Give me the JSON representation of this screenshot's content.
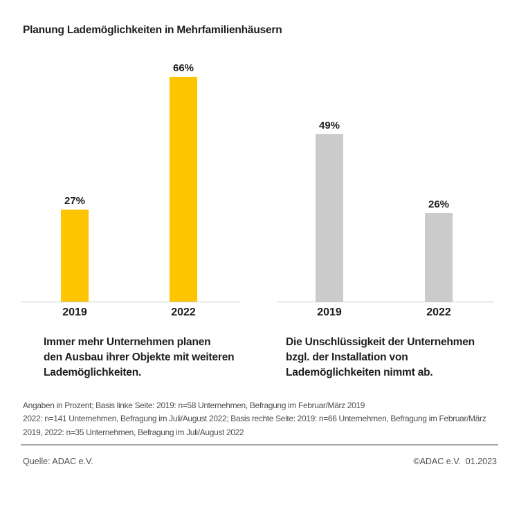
{
  "page": {
    "title": "Planung Lademöglichkeiten in Mehrfamilienhäusern"
  },
  "colors": {
    "bar_yellow": "#FDC600",
    "bar_gray": "#CBCBCB",
    "text_dark": "#1D1D1B",
    "text_muted": "#4E4E4E",
    "axis_line": "#C9C9C9",
    "divider": "#A6A6A6"
  },
  "chart_data": [
    {
      "type": "bar",
      "position": "left",
      "categories": [
        "2019",
        "2022"
      ],
      "values": [
        27,
        66
      ],
      "labels": [
        "27%",
        "66%"
      ],
      "value_suffix": "%",
      "bar_color": "#FDC600",
      "ylim": [
        0,
        70
      ],
      "grid": false,
      "legend": false,
      "caption_lines": [
        "Immer mehr Unternehmen planen",
        "den Ausbau ihrer Objekte mit weiteren",
        "Lademöglichkeiten."
      ]
    },
    {
      "type": "bar",
      "position": "right",
      "categories": [
        "2019",
        "2022"
      ],
      "values": [
        49,
        26
      ],
      "labels": [
        "49%",
        "26%"
      ],
      "value_suffix": "%",
      "bar_color": "#CBCBCB",
      "ylim": [
        0,
        70
      ],
      "grid": false,
      "legend": false,
      "caption_lines": [
        "Die Unschlüssigkeit der Unternehmen",
        "bzgl. der Installation von",
        "Lademöglichkeiten nimmt ab."
      ]
    }
  ],
  "footnote": {
    "lines": [
      "Angaben in Prozent; Basis linke Seite: 2019: n=58 Unternehmen, Befragung im Februar/März 2019",
      "2022: n=141 Unternehmen, Befragung im Juli/August 2022; Basis rechte Seite: 2019: n=66 Unternehmen, Befragung im Februar/März",
      "2019, 2022: n=35 Unternehmen, Befragung im Juli/August 2022"
    ]
  },
  "footer": {
    "source": "Quelle: ADAC e.V.",
    "copyright": "©ADAC e.V.  01.2023"
  }
}
